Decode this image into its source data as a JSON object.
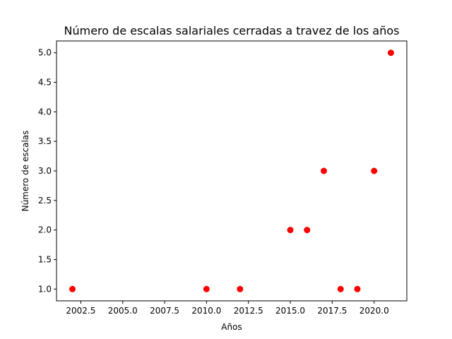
{
  "chart_data": {
    "type": "scatter",
    "title": "Número de escalas salariales cerradas a travez de los años",
    "xlabel": "Años",
    "ylabel": "Número de escalas",
    "x": [
      2002,
      2010,
      2012,
      2015,
      2016,
      2017,
      2018,
      2019,
      2020,
      2021
    ],
    "y": [
      1.0,
      1.0,
      1.0,
      2.0,
      2.0,
      3.0,
      1.0,
      1.0,
      3.0,
      5.0
    ],
    "xlim": [
      2001.05,
      2021.95
    ],
    "ylim": [
      0.8,
      5.2
    ],
    "xticks": [
      2002.5,
      2005.0,
      2007.5,
      2010.0,
      2012.5,
      2015.0,
      2017.5,
      2020.0
    ],
    "xtick_labels": [
      "2002.5",
      "2005.0",
      "2007.5",
      "2010.0",
      "2012.5",
      "2015.0",
      "2017.5",
      "2020.0"
    ],
    "yticks": [
      1.0,
      1.5,
      2.0,
      2.5,
      3.0,
      3.5,
      4.0,
      4.5,
      5.0
    ],
    "ytick_labels": [
      "1.0",
      "1.5",
      "2.0",
      "2.5",
      "3.0",
      "3.5",
      "4.0",
      "4.5",
      "5.0"
    ],
    "marker_color": "#ff0000",
    "grid": false,
    "legend": false
  }
}
